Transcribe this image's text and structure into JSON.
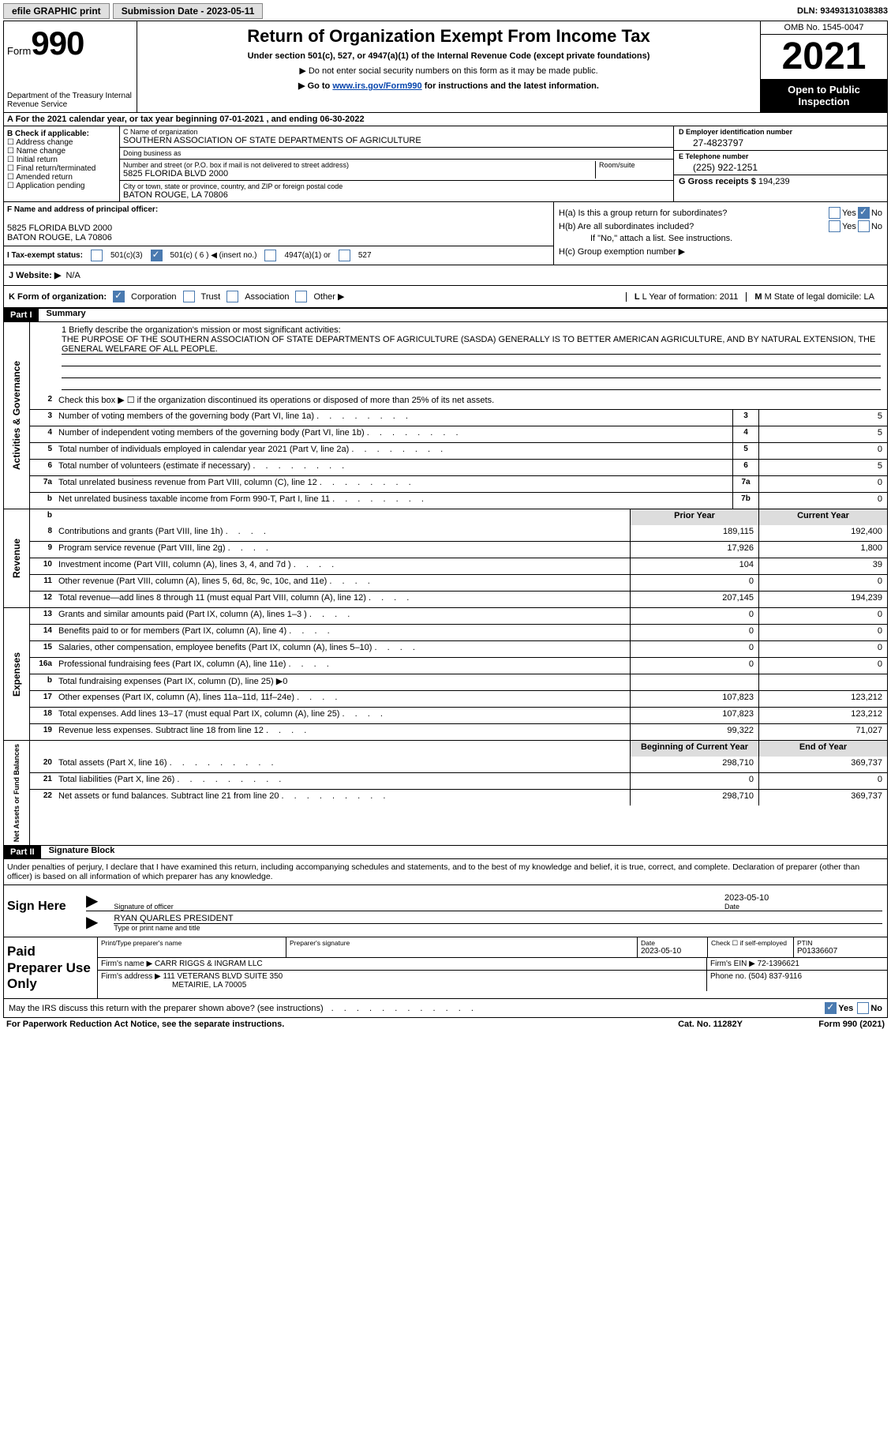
{
  "topbar": {
    "efile": "efile GRAPHIC print",
    "submission": "Submission Date - 2023-05-11",
    "dln_label": "DLN:",
    "dln": "93493131038383"
  },
  "header": {
    "form_label": "Form",
    "form_num": "990",
    "dept": "Department of the Treasury Internal Revenue Service",
    "title": "Return of Organization Exempt From Income Tax",
    "subtitle": "Under section 501(c), 527, or 4947(a)(1) of the Internal Revenue Code (except private foundations)",
    "note1": "▶ Do not enter social security numbers on this form as it may be made public.",
    "note2_a": "▶ Go to ",
    "note2_link": "www.irs.gov/Form990",
    "note2_b": " for instructions and the latest information.",
    "omb": "OMB No. 1545-0047",
    "year": "2021",
    "inspect": "Open to Public Inspection"
  },
  "rowA": "A For the 2021 calendar year, or tax year beginning 07-01-2021   , and ending 06-30-2022",
  "colB": {
    "hdr": "B Check if applicable:",
    "opts": [
      "Address change",
      "Name change",
      "Initial return",
      "Final return/terminated",
      "Amended return",
      "Application pending"
    ]
  },
  "colC": {
    "name_lbl": "C Name of organization",
    "name": "SOUTHERN ASSOCIATION OF STATE DEPARTMENTS OF AGRICULTURE",
    "dba_lbl": "Doing business as",
    "dba": "",
    "street_lbl": "Number and street (or P.O. box if mail is not delivered to street address)",
    "street": "5825 FLORIDA BLVD 2000",
    "room_lbl": "Room/suite",
    "city_lbl": "City or town, state or province, country, and ZIP or foreign postal code",
    "city": "BATON ROUGE, LA   70806"
  },
  "colD": {
    "ein_lbl": "D Employer identification number",
    "ein": "27-4823797",
    "phone_lbl": "E Telephone number",
    "phone": "(225) 922-1251",
    "gross_lbl": "G Gross receipts $",
    "gross": "194,239"
  },
  "f": {
    "lbl": "F  Name and address of principal officer:",
    "addr1": "5825 FLORIDA BLVD 2000",
    "addr2": "BATON ROUGE, LA   70806"
  },
  "i": {
    "lbl": "I   Tax-exempt status:",
    "c6": "501(c) ( 6 ) ◀ (insert no.)"
  },
  "h": {
    "a": "H(a)  Is this a group return for subordinates?",
    "b": "H(b)  Are all subordinates included?",
    "note": "If \"No,\" attach a list. See instructions.",
    "c": "H(c)  Group exemption number ▶"
  },
  "j": {
    "lbl": "J   Website: ▶",
    "val": "N/A"
  },
  "k": {
    "lbl": "K Form of organization:",
    "l": "L Year of formation: 2011",
    "m": "M State of legal domicile: LA"
  },
  "partI": {
    "hdr": "Part I",
    "title": "Summary"
  },
  "mission": {
    "lbl": "1   Briefly describe the organization's mission or most significant activities:",
    "text": "THE PURPOSE OF THE SOUTHERN ASSOCIATION OF STATE DEPARTMENTS OF AGRICULTURE (SASDA) GENERALLY IS TO BETTER AMERICAN AGRICULTURE, AND BY NATURAL EXTENSION, THE GENERAL WELFARE OF ALL PEOPLE."
  },
  "gov_lines": [
    {
      "n": "2",
      "t": "Check this box ▶ ☐  if the organization discontinued its operations or disposed of more than 25% of its net assets.",
      "box": "",
      "v": ""
    },
    {
      "n": "3",
      "t": "Number of voting members of the governing body (Part VI, line 1a)",
      "box": "3",
      "v": "5"
    },
    {
      "n": "4",
      "t": "Number of independent voting members of the governing body (Part VI, line 1b)",
      "box": "4",
      "v": "5"
    },
    {
      "n": "5",
      "t": "Total number of individuals employed in calendar year 2021 (Part V, line 2a)",
      "box": "5",
      "v": "0"
    },
    {
      "n": "6",
      "t": "Total number of volunteers (estimate if necessary)",
      "box": "6",
      "v": "5"
    },
    {
      "n": "7a",
      "t": "Total unrelated business revenue from Part VIII, column (C), line 12",
      "box": "7a",
      "v": "0"
    },
    {
      "n": "b",
      "t": "Net unrelated business taxable income from Form 990-T, Part I, line 11",
      "box": "7b",
      "v": "0"
    }
  ],
  "rev_hdr": {
    "py": "Prior Year",
    "cy": "Current Year"
  },
  "rev_lines": [
    {
      "n": "8",
      "t": "Contributions and grants (Part VIII, line 1h)",
      "py": "189,115",
      "cy": "192,400"
    },
    {
      "n": "9",
      "t": "Program service revenue (Part VIII, line 2g)",
      "py": "17,926",
      "cy": "1,800"
    },
    {
      "n": "10",
      "t": "Investment income (Part VIII, column (A), lines 3, 4, and 7d )",
      "py": "104",
      "cy": "39"
    },
    {
      "n": "11",
      "t": "Other revenue (Part VIII, column (A), lines 5, 6d, 8c, 9c, 10c, and 11e)",
      "py": "0",
      "cy": "0"
    },
    {
      "n": "12",
      "t": "Total revenue—add lines 8 through 11 (must equal Part VIII, column (A), line 12)",
      "py": "207,145",
      "cy": "194,239"
    }
  ],
  "exp_lines": [
    {
      "n": "13",
      "t": "Grants and similar amounts paid (Part IX, column (A), lines 1–3 )",
      "py": "0",
      "cy": "0"
    },
    {
      "n": "14",
      "t": "Benefits paid to or for members (Part IX, column (A), line 4)",
      "py": "0",
      "cy": "0"
    },
    {
      "n": "15",
      "t": "Salaries, other compensation, employee benefits (Part IX, column (A), lines 5–10)",
      "py": "0",
      "cy": "0"
    },
    {
      "n": "16a",
      "t": "Professional fundraising fees (Part IX, column (A), line 11e)",
      "py": "0",
      "cy": "0"
    },
    {
      "n": "b",
      "t": "Total fundraising expenses (Part IX, column (D), line 25) ▶0",
      "py": "",
      "cy": "",
      "shade": true
    },
    {
      "n": "17",
      "t": "Other expenses (Part IX, column (A), lines 11a–11d, 11f–24e)",
      "py": "107,823",
      "cy": "123,212"
    },
    {
      "n": "18",
      "t": "Total expenses. Add lines 13–17 (must equal Part IX, column (A), line 25)",
      "py": "107,823",
      "cy": "123,212"
    },
    {
      "n": "19",
      "t": "Revenue less expenses. Subtract line 18 from line 12",
      "py": "99,322",
      "cy": "71,027"
    }
  ],
  "net_hdr": {
    "py": "Beginning of Current Year",
    "cy": "End of Year"
  },
  "net_lines": [
    {
      "n": "20",
      "t": "Total assets (Part X, line 16)",
      "py": "298,710",
      "cy": "369,737"
    },
    {
      "n": "21",
      "t": "Total liabilities (Part X, line 26)",
      "py": "0",
      "cy": "0"
    },
    {
      "n": "22",
      "t": "Net assets or fund balances. Subtract line 21 from line 20",
      "py": "298,710",
      "cy": "369,737"
    }
  ],
  "partII": {
    "hdr": "Part II",
    "title": "Signature Block"
  },
  "declare": "Under penalties of perjury, I declare that I have examined this return, including accompanying schedules and statements, and to the best of my knowledge and belief, it is true, correct, and complete. Declaration of preparer (other than officer) is based on all information of which preparer has any knowledge.",
  "sign": {
    "hdr": "Sign Here",
    "sig_lbl": "Signature of officer",
    "date": "2023-05-10",
    "date_lbl": "Date",
    "name": "RYAN QUARLES PRESIDENT",
    "name_lbl": "Type or print name and title"
  },
  "prep": {
    "hdr": "Paid Preparer Use Only",
    "r1": {
      "a_lbl": "Print/Type preparer's name",
      "a": "",
      "b_lbl": "Preparer's signature",
      "b": "",
      "c_lbl": "Date",
      "c": "2023-05-10",
      "d_lbl": "Check ☐ if self-employed",
      "e_lbl": "PTIN",
      "e": "P01336607"
    },
    "r2": {
      "a_lbl": "Firm's name    ▶",
      "a": "CARR RIGGS & INGRAM LLC",
      "b_lbl": "Firm's EIN ▶",
      "b": "72-1396621"
    },
    "r3": {
      "a_lbl": "Firm's address ▶",
      "a1": "111 VETERANS BLVD SUITE 350",
      "a2": "METAIRIE, LA   70005",
      "b_lbl": "Phone no.",
      "b": "(504) 837-9116"
    }
  },
  "discuss": "May the IRS discuss this return with the preparer shown above? (see instructions)",
  "bottom": {
    "l": "For Paperwork Reduction Act Notice, see the separate instructions.",
    "m": "Cat. No. 11282Y",
    "r": "Form 990 (2021)"
  }
}
